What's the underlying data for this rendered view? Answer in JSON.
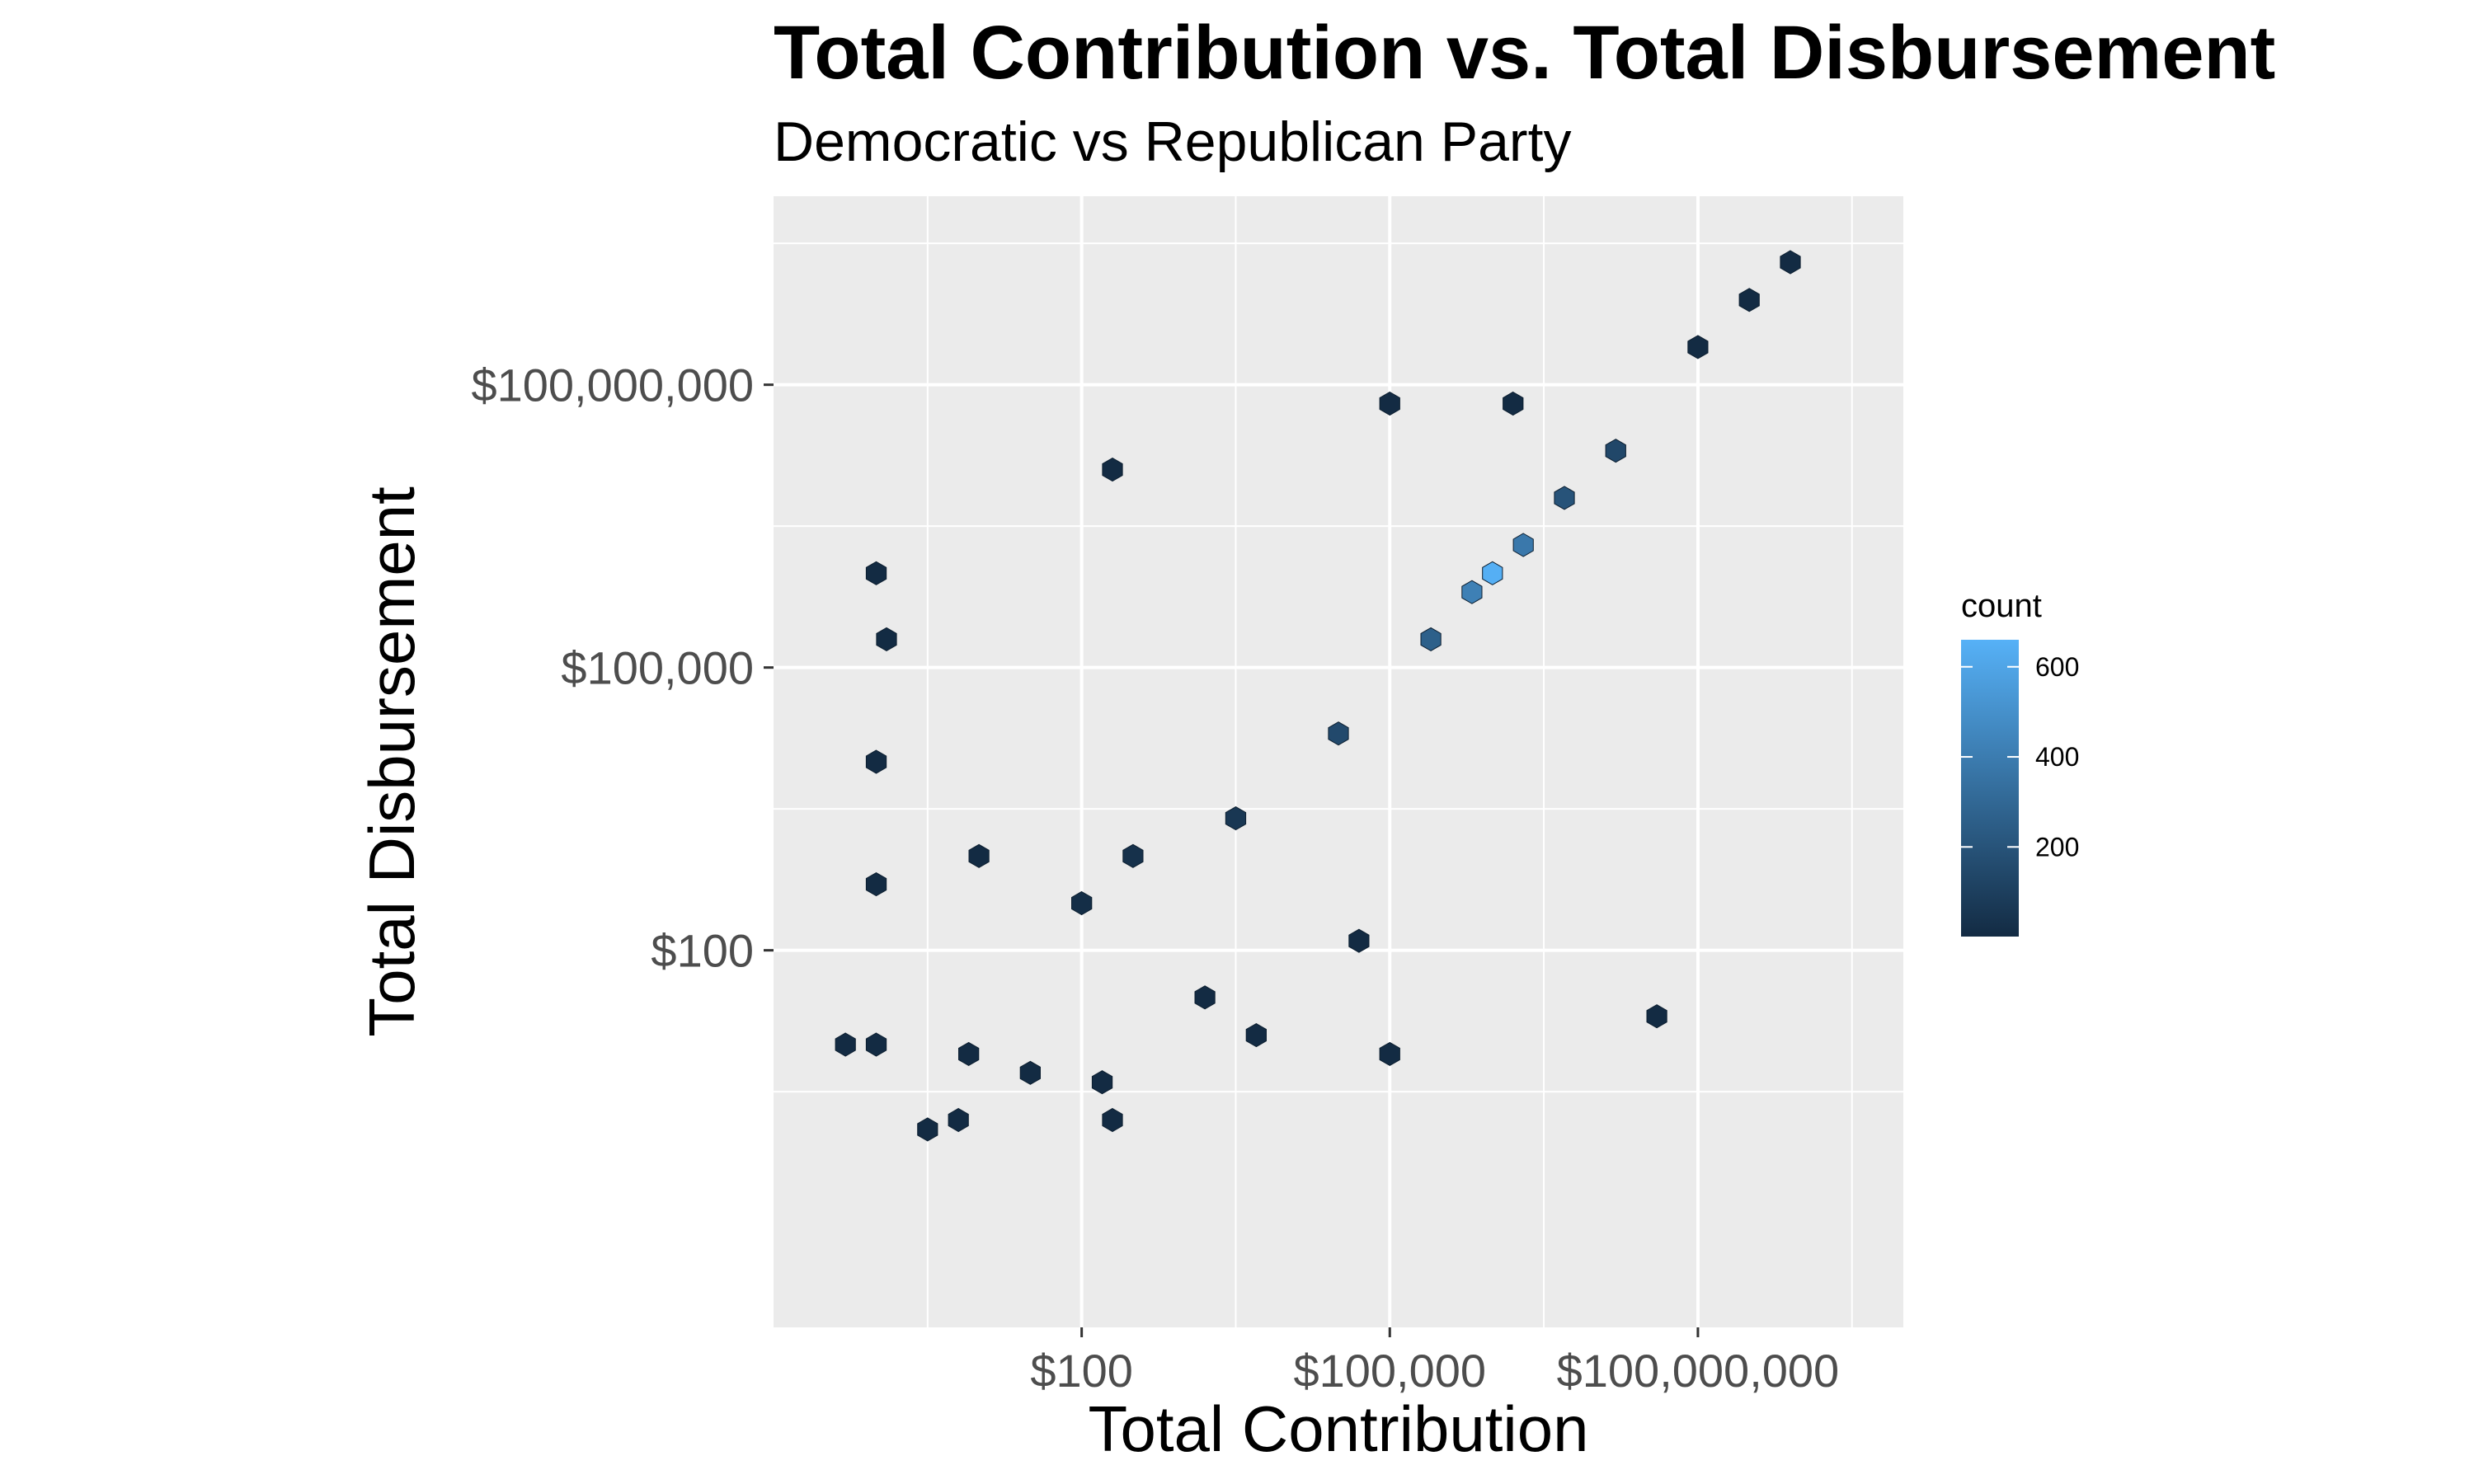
{
  "chart_data": {
    "type": "heatmap",
    "subtype": "hexbin",
    "title": "Total Contribution vs. Total Disbursement",
    "subtitle": "Democratic vs Republican Party",
    "xlabel": "Total Contribution",
    "ylabel": "Total Disbursement",
    "x_scale": "log10",
    "y_scale": "log10",
    "xlim": [
      0.1,
      10000000000
    ],
    "ylim": [
      0.01,
      10000000000
    ],
    "x_ticks": [
      {
        "value": 100,
        "label": "$100"
      },
      {
        "value": 100000,
        "label": "$100,000"
      },
      {
        "value": 100000000,
        "label": "$100,000,000"
      }
    ],
    "y_ticks": [
      {
        "value": 100,
        "label": "$100"
      },
      {
        "value": 100000,
        "label": "$100,000"
      },
      {
        "value": 100000000,
        "label": "$100,000,000"
      }
    ],
    "grid": true,
    "legend": {
      "title": "count",
      "position": "right",
      "breaks": [
        200,
        400,
        600
      ],
      "range": [
        1,
        660
      ],
      "low_color": "#132B43",
      "high_color": "#56B1F7"
    },
    "bins_log10": [
      {
        "x": -0.3,
        "y": 1.0,
        "count": 1
      },
      {
        "x": 1.0,
        "y": 3.0,
        "count": 1
      },
      {
        "x": 0.0,
        "y": 1.0,
        "count": 1
      },
      {
        "x": 0.0,
        "y": 4.0,
        "count": 1
      },
      {
        "x": 0.1,
        "y": 5.3,
        "count": 1
      },
      {
        "x": 0.0,
        "y": 2.7,
        "count": 1
      },
      {
        "x": 0.0,
        "y": 6.0,
        "count": 1
      },
      {
        "x": 0.5,
        "y": 0.1,
        "count": 1
      },
      {
        "x": 0.8,
        "y": 0.2,
        "count": 1
      },
      {
        "x": 0.9,
        "y": 0.9,
        "count": 1
      },
      {
        "x": 1.5,
        "y": 0.7,
        "count": 1
      },
      {
        "x": 2.2,
        "y": 0.6,
        "count": 1
      },
      {
        "x": 2.3,
        "y": 0.2,
        "count": 1
      },
      {
        "x": 3.7,
        "y": 1.1,
        "count": 1
      },
      {
        "x": 3.2,
        "y": 1.5,
        "count": 1
      },
      {
        "x": 5.0,
        "y": 0.9,
        "count": 1
      },
      {
        "x": 4.7,
        "y": 2.1,
        "count": 1
      },
      {
        "x": 5.0,
        "y": 7.8,
        "count": 1
      },
      {
        "x": 6.2,
        "y": 7.8,
        "count": 1
      },
      {
        "x": 2.3,
        "y": 7.1,
        "count": 1
      },
      {
        "x": 7.6,
        "y": 1.3,
        "count": 1
      },
      {
        "x": 8.0,
        "y": 8.4,
        "count": 2
      },
      {
        "x": 8.5,
        "y": 8.9,
        "count": 2
      },
      {
        "x": 8.9,
        "y": 9.3,
        "count": 2
      },
      {
        "x": 6.0,
        "y": 6.0,
        "count": 650
      },
      {
        "x": 5.8,
        "y": 5.8,
        "count": 420
      },
      {
        "x": 6.3,
        "y": 6.3,
        "count": 380
      },
      {
        "x": 5.4,
        "y": 5.3,
        "count": 260
      },
      {
        "x": 4.5,
        "y": 4.3,
        "count": 150
      },
      {
        "x": 6.7,
        "y": 6.8,
        "count": 200
      },
      {
        "x": 7.2,
        "y": 7.3,
        "count": 140
      },
      {
        "x": 3.5,
        "y": 3.4,
        "count": 60
      },
      {
        "x": 2.5,
        "y": 3.0,
        "count": 30
      },
      {
        "x": 2.0,
        "y": 2.5,
        "count": 15
      }
    ]
  }
}
